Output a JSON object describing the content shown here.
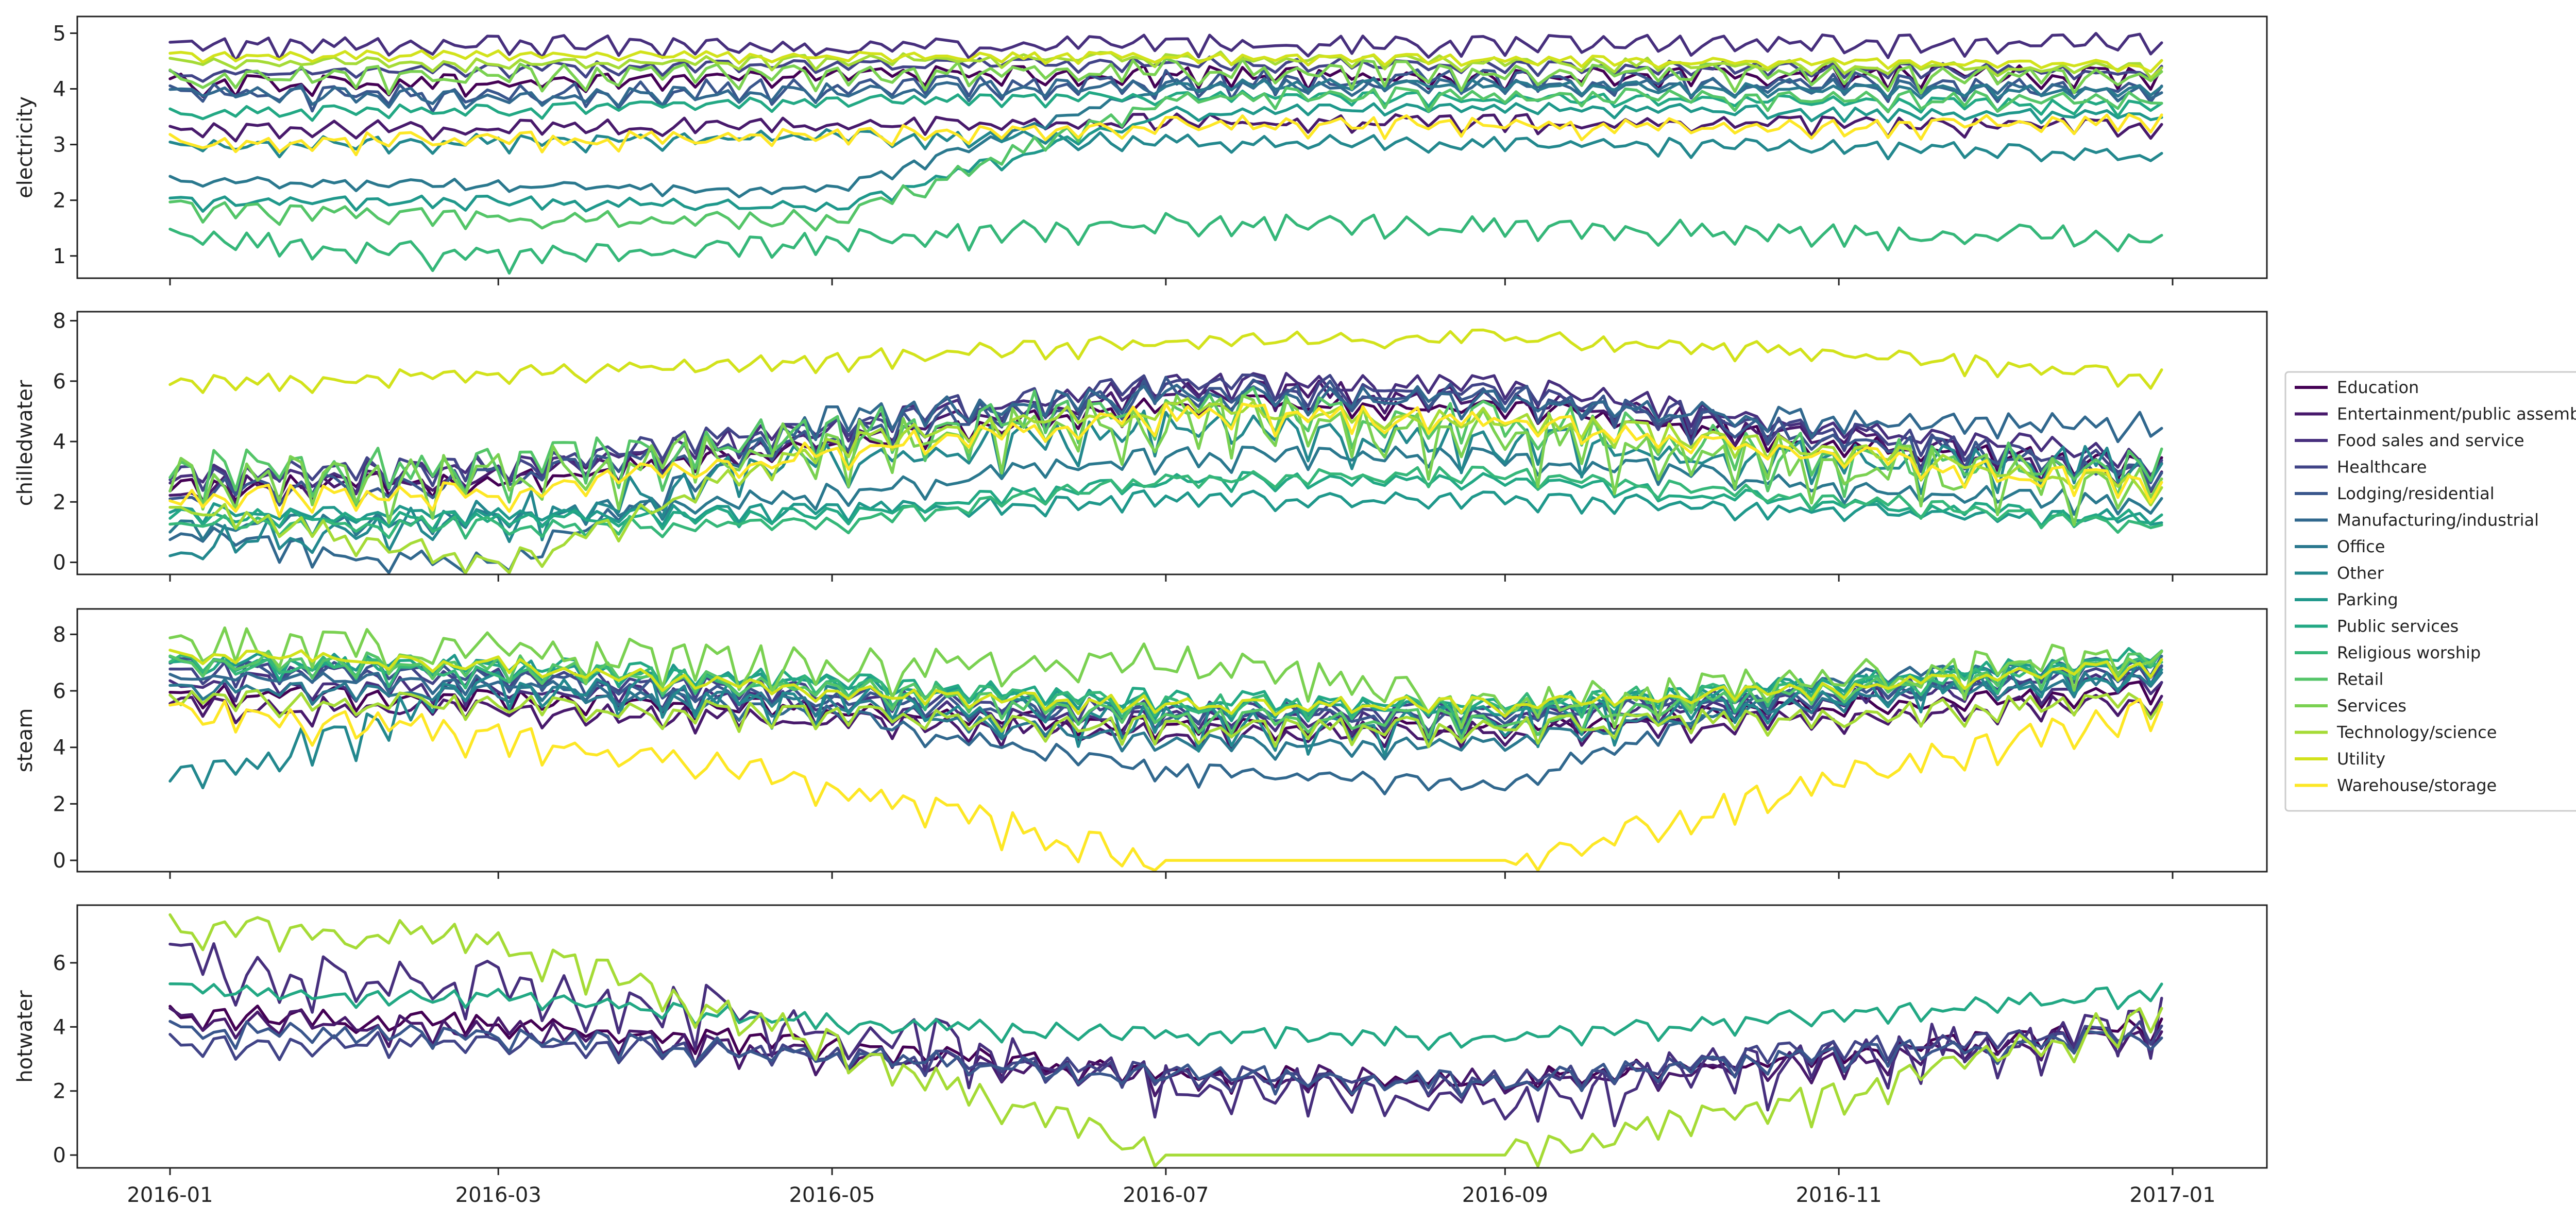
{
  "chart_data": {
    "type": "line",
    "x_start": "2016-01-01",
    "x_end": "2016-12-31",
    "x_ticks": [
      "2016-01",
      "2016-03",
      "2016-05",
      "2016-07",
      "2016-09",
      "2016-11",
      "2017-01"
    ],
    "x_tick_dates": [
      "2016-01-01",
      "2016-03-01",
      "2016-05-01",
      "2016-07-01",
      "2016-09-01",
      "2016-11-01",
      "2017-01-01"
    ],
    "legend": {
      "placement": "right",
      "entries": [
        {
          "name": "Education",
          "color": "#440154"
        },
        {
          "name": "Entertainment/public assembly",
          "color": "#481a6c"
        },
        {
          "name": "Food sales and service",
          "color": "#472f7d"
        },
        {
          "name": "Healthcare",
          "color": "#414487"
        },
        {
          "name": "Lodging/residential",
          "color": "#39568c"
        },
        {
          "name": "Manufacturing/industrial",
          "color": "#31688e"
        },
        {
          "name": "Office",
          "color": "#2a788e"
        },
        {
          "name": "Other",
          "color": "#23888e"
        },
        {
          "name": "Parking",
          "color": "#1f988b"
        },
        {
          "name": "Public services",
          "color": "#22a884"
        },
        {
          "name": "Religious worship",
          "color": "#35b779"
        },
        {
          "name": "Retail",
          "color": "#54c568"
        },
        {
          "name": "Services",
          "color": "#7ad151"
        },
        {
          "name": "Technology/science",
          "color": "#a5db36"
        },
        {
          "name": "Utility",
          "color": "#d2e21b"
        },
        {
          "name": "Warehouse/storage",
          "color": "#fde725"
        }
      ]
    },
    "panels": [
      {
        "ylabel": "electricity",
        "ylim": [
          0.6,
          5.3
        ],
        "yticks": [
          1,
          2,
          3,
          4,
          5
        ],
        "series": [
          {
            "name": "Education",
            "base": [
              4.15,
              4.15,
              4.3,
              4.3,
              4.25,
              4.3,
              4.3
            ],
            "noise": 0.12
          },
          {
            "name": "Entertainment/public assembly",
            "base": [
              3.3,
              3.35,
              3.4,
              3.45,
              3.45,
              3.4,
              3.35
            ],
            "noise": 0.1
          },
          {
            "name": "Food sales and service",
            "base": [
              4.8,
              4.85,
              4.8,
              4.85,
              4.85,
              4.85,
              4.9
            ],
            "noise": 0.12
          },
          {
            "name": "Healthcare",
            "base": [
              4.3,
              4.4,
              4.45,
              4.5,
              4.45,
              4.4,
              4.35
            ],
            "noise": 0.08
          },
          {
            "name": "Lodging/residential",
            "base": [
              4.0,
              3.95,
              4.1,
              4.2,
              4.2,
              4.15,
              4.05
            ],
            "noise": 0.15
          },
          {
            "name": "Manufacturing/industrial",
            "base": [
              3.95,
              3.9,
              4.0,
              4.1,
              4.1,
              4.1,
              4.0
            ],
            "noise": 0.1
          },
          {
            "name": "Office",
            "base": [
              2.4,
              2.3,
              2.2,
              4.1,
              4.1,
              4.0,
              4.0
            ],
            "noise": 0.07
          },
          {
            "name": "Other",
            "base": [
              3.0,
              3.1,
              3.2,
              3.1,
              3.05,
              3.0,
              2.85
            ],
            "noise": 0.1
          },
          {
            "name": "Parking",
            "base": [
              2.0,
              2.0,
              1.9,
              3.6,
              3.7,
              3.6,
              3.55
            ],
            "noise": 0.08
          },
          {
            "name": "Public services",
            "base": [
              3.6,
              3.65,
              3.8,
              3.9,
              3.85,
              3.8,
              3.7
            ],
            "noise": 0.08
          },
          {
            "name": "Religious worship",
            "base": [
              1.4,
              1.0,
              1.3,
              1.7,
              1.55,
              1.45,
              1.4
            ],
            "noise": 0.15
          },
          {
            "name": "Retail",
            "base": [
              1.9,
              1.7,
              1.7,
              3.9,
              3.9,
              3.85,
              3.85
            ],
            "noise": 0.12
          },
          {
            "name": "Services",
            "base": [
              4.25,
              4.3,
              4.3,
              4.4,
              4.35,
              4.3,
              4.25
            ],
            "noise": 0.15
          },
          {
            "name": "Technology/science",
            "base": [
              4.5,
              4.5,
              4.55,
              4.6,
              4.5,
              4.45,
              4.4
            ],
            "noise": 0.08
          },
          {
            "name": "Utility",
            "base": [
              4.6,
              4.65,
              4.6,
              4.6,
              4.55,
              4.5,
              4.45
            ],
            "noise": 0.06
          },
          {
            "name": "Warehouse/storage",
            "base": [
              3.1,
              3.1,
              3.2,
              3.4,
              3.4,
              3.35,
              3.5
            ],
            "noise": 0.12
          }
        ]
      },
      {
        "ylabel": "chilledwater",
        "ylim": [
          -0.4,
          8.3
        ],
        "yticks": [
          0,
          2,
          4,
          6,
          8
        ],
        "series": [
          {
            "name": "Education",
            "base": [
              2.6,
              2.8,
              4.0,
              5.3,
              5.3,
              4.0,
              3.3
            ],
            "noise": 0.25
          },
          {
            "name": "Entertainment/public assembly",
            "base": [
              2.5,
              3.0,
              4.2,
              5.8,
              5.6,
              4.2,
              3.0
            ],
            "noise": 0.3
          },
          {
            "name": "Food sales and service",
            "base": [
              2.9,
              3.2,
              4.6,
              6.0,
              6.0,
              4.6,
              3.5
            ],
            "noise": 0.3
          },
          {
            "name": "Healthcare",
            "base": [
              3.0,
              3.3,
              4.8,
              6.0,
              5.8,
              4.4,
              3.2
            ],
            "noise": 0.3
          },
          {
            "name": "Lodging/residential",
            "base": [
              2.4,
              2.8,
              4.4,
              5.8,
              5.6,
              4.2,
              3.0
            ],
            "noise": 0.35
          },
          {
            "name": "Manufacturing/industrial",
            "base": [
              1.0,
              0.0,
              5.0,
              5.6,
              5.5,
              4.8,
              4.7
            ],
            "noise": 0.3
          },
          {
            "name": "Office",
            "base": [
              1.2,
              1.6,
              2.4,
              3.6,
              3.6,
              2.6,
              2.0
            ],
            "noise": 0.25
          },
          {
            "name": "Other",
            "base": [
              0.6,
              1.8,
              3.6,
              4.6,
              4.0,
              3.6,
              3.4
            ],
            "noise": 0.5
          },
          {
            "name": "Parking",
            "base": [
              1.8,
              1.6,
              1.8,
              2.2,
              2.2,
              1.8,
              1.5
            ],
            "noise": 0.2
          },
          {
            "name": "Public services",
            "base": [
              1.6,
              1.5,
              1.7,
              2.8,
              2.8,
              2.0,
              1.5
            ],
            "noise": 0.2
          },
          {
            "name": "Religious worship",
            "base": [
              1.4,
              1.3,
              1.4,
              2.8,
              3.0,
              2.2,
              1.3
            ],
            "noise": 0.2
          },
          {
            "name": "Retail",
            "base": [
              3.2,
              3.4,
              4.5,
              5.5,
              4.8,
              3.6,
              3.2
            ],
            "noise": 0.6
          },
          {
            "name": "Services",
            "base": [
              2.8,
              3.0,
              4.2,
              5.0,
              4.4,
              3.4,
              2.6
            ],
            "noise": 0.7
          },
          {
            "name": "Technology/science",
            "base": [
              2.0,
              0.0,
              4.2,
              5.2,
              4.8,
              3.8,
              2.6
            ],
            "noise": 0.3
          },
          {
            "name": "Utility",
            "base": [
              6.0,
              6.3,
              6.8,
              7.4,
              7.5,
              7.0,
              6.2
            ],
            "noise": 0.2
          },
          {
            "name": "Warehouse/storage",
            "base": [
              2.2,
              2.4,
              3.8,
              5.0,
              4.8,
              3.6,
              2.6
            ],
            "noise": 0.3
          }
        ]
      },
      {
        "ylabel": "steam",
        "ylim": [
          -0.4,
          8.9
        ],
        "yticks": [
          0,
          2,
          4,
          6,
          8
        ],
        "series": [
          {
            "name": "Education",
            "base": [
              6.0,
              5.8,
              5.4,
              4.8,
              4.8,
              5.5,
              6.2
            ],
            "noise": 0.25
          },
          {
            "name": "Entertainment/public assembly",
            "base": [
              5.6,
              5.4,
              5.0,
              4.6,
              4.6,
              5.2,
              5.9
            ],
            "noise": 0.3
          },
          {
            "name": "Food sales and service",
            "base": [
              6.4,
              6.2,
              5.6,
              5.0,
              5.2,
              5.8,
              6.6
            ],
            "noise": 0.3
          },
          {
            "name": "Healthcare",
            "base": [
              6.8,
              6.6,
              6.0,
              5.4,
              5.4,
              6.0,
              6.8
            ],
            "noise": 0.25
          },
          {
            "name": "Lodging/residential",
            "base": [
              7.0,
              6.6,
              5.8,
              5.2,
              5.2,
              6.0,
              7.0
            ],
            "noise": 0.25
          },
          {
            "name": "Manufacturing/industrial",
            "base": [
              6.6,
              6.4,
              5.2,
              3.2,
              2.8,
              6.6,
              7.0
            ],
            "noise": 0.25
          },
          {
            "name": "Office",
            "base": [
              6.2,
              6.0,
              5.6,
              4.2,
              4.2,
              5.8,
              6.6
            ],
            "noise": 0.25
          },
          {
            "name": "Other",
            "base": [
              2.8,
              6.4,
              5.8,
              5.0,
              5.0,
              6.0,
              7.0
            ],
            "noise": 0.5
          },
          {
            "name": "Parking",
            "base": [
              7.2,
              7.0,
              6.4,
              5.6,
              5.4,
              6.4,
              7.2
            ],
            "noise": 0.25
          },
          {
            "name": "Public services",
            "base": [
              7.0,
              7.0,
              6.4,
              5.8,
              5.6,
              6.4,
              7.4
            ],
            "noise": 0.25
          },
          {
            "name": "Religious worship",
            "base": [
              7.0,
              6.8,
              6.2,
              5.6,
              5.6,
              6.2,
              7.2
            ],
            "noise": 0.3
          },
          {
            "name": "Retail",
            "base": [
              7.2,
              7.0,
              6.2,
              5.2,
              5.0,
              6.2,
              7.2
            ],
            "noise": 0.3
          },
          {
            "name": "Services",
            "base": [
              7.8,
              7.6,
              7.0,
              7.2,
              5.6,
              6.6,
              7.4
            ],
            "noise": 0.5
          },
          {
            "name": "Technology/science",
            "base": [
              5.8,
              5.6,
              5.2,
              4.8,
              4.8,
              5.2,
              5.8
            ],
            "noise": 0.3
          },
          {
            "name": "Utility",
            "base": [
              7.4,
              7.0,
              6.0,
              5.6,
              5.6,
              6.2,
              7.0
            ],
            "noise": 0.2
          },
          {
            "name": "Warehouse/storage",
            "base": [
              5.4,
              4.6,
              2.8,
              0.0,
              0.0,
              3.0,
              5.6
            ],
            "noise": 0.4
          }
        ]
      },
      {
        "ylabel": "hotwater",
        "ylim": [
          -0.4,
          7.8
        ],
        "yticks": [
          0,
          2,
          4,
          6
        ],
        "series": [
          {
            "name": "Education",
            "base": [
              4.5,
              4.2,
              3.5,
              2.6,
              2.4,
              3.2,
              4.2
            ],
            "noise": 0.25
          },
          {
            "name": "Entertainment/public assembly",
            "base": [
              4.4,
              4.0,
              3.2,
              2.6,
              2.4,
              3.0,
              4.0
            ],
            "noise": 0.3
          },
          {
            "name": "Food sales and service",
            "base": [
              6.2,
              5.6,
              4.2,
              2.4,
              2.0,
              3.2,
              4.4
            ],
            "noise": 0.6
          },
          {
            "name": "Healthcare",
            "base": [
              3.6,
              3.6,
              3.2,
              2.6,
              2.4,
              3.4,
              4.0
            ],
            "noise": 0.25
          },
          {
            "name": "Lodging/residential",
            "base": [
              4.0,
              3.8,
              3.2,
              2.6,
              2.4,
              3.2,
              3.8
            ],
            "noise": 0.25
          },
          {
            "name": "Public services",
            "base": [
              5.2,
              5.0,
              4.2,
              3.8,
              3.8,
              4.4,
              5.2
            ],
            "noise": 0.2
          },
          {
            "name": "Technology/science",
            "base": [
              7.2,
              6.8,
              3.5,
              0.0,
              0.0,
              2.0,
              4.6
            ],
            "noise": 0.4
          }
        ]
      }
    ]
  }
}
